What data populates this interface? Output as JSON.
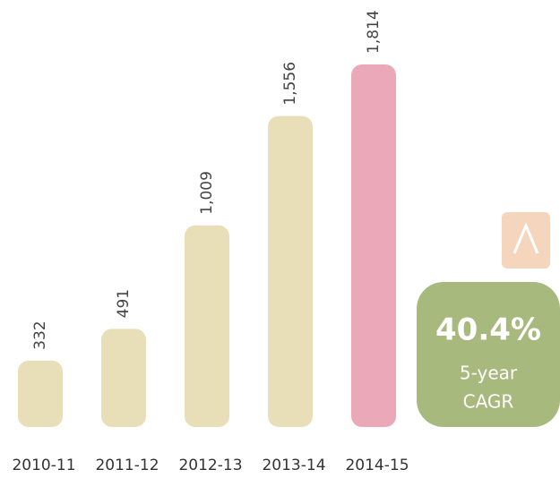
{
  "chart_data": {
    "type": "bar",
    "categories": [
      "2010-11",
      "2011-12",
      "2012-13",
      "2013-14",
      "2014-15"
    ],
    "values": [
      332,
      491,
      1009,
      1556,
      1814
    ],
    "value_labels": [
      "332",
      "491",
      "1,009",
      "1,556",
      "1,814"
    ],
    "colors": [
      "#e8dfb8",
      "#e8dfb8",
      "#e8dfb8",
      "#e8dfb8",
      "#eba8b8"
    ],
    "badge": {
      "value": "40.4%",
      "line1": "5-year",
      "line2": "CAGR",
      "color": "#a8b97e",
      "icon_color": "#f5d5bc"
    }
  }
}
